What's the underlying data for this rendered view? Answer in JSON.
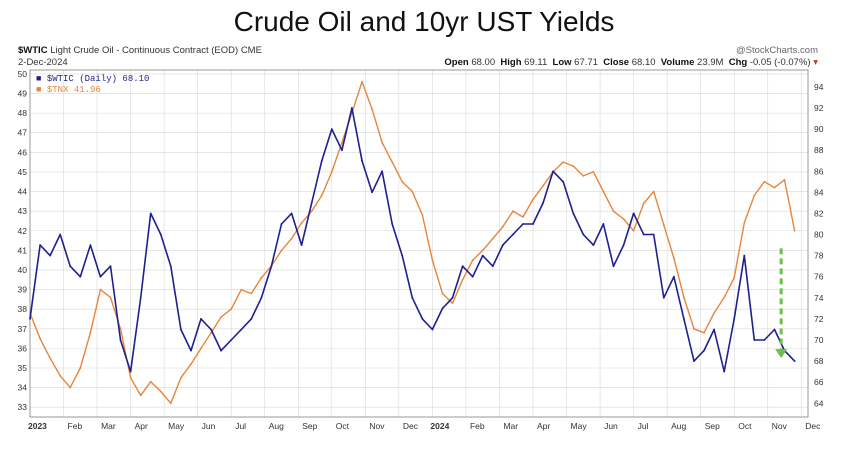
{
  "header": {
    "title": "Crude Oil and 10yr UST Yields",
    "symbol": "$WTIC",
    "description": "Light Crude Oil - Continuous Contract (EOD)",
    "exchange": "CME",
    "date": "2-Dec-2024",
    "watermark": "@StockCharts.com",
    "quote": {
      "open_label": "Open",
      "open": "68.00",
      "high_label": "High",
      "high": "69.11",
      "low_label": "Low",
      "low": "67.71",
      "close_label": "Close",
      "close": "68.10",
      "volume_label": "Volume",
      "volume": "23.9M",
      "chg_label": "Chg",
      "chg": "-0.05 (-0.07%)"
    }
  },
  "legend": {
    "wtic": "$WTIC (Daily) 68.10",
    "tnx": "$TNX 41.96"
  },
  "colors": {
    "wtic": "#1f1f8f",
    "tnx": "#e8853a",
    "arrow": "#6cc04a",
    "grid": "#d8d8d8"
  },
  "chart_data": {
    "type": "line",
    "left_axis_ticks": [
      33,
      34,
      35,
      36,
      37,
      38,
      39,
      40,
      41,
      42,
      43,
      44,
      45,
      46,
      47,
      48,
      49,
      50
    ],
    "right_axis_ticks": [
      64,
      66,
      68,
      70,
      72,
      74,
      76,
      78,
      80,
      82,
      84,
      86,
      88,
      90,
      92,
      94
    ],
    "left_ylim": [
      32.5,
      50.2
    ],
    "right_ylim": [
      62.7,
      95.6
    ],
    "x_ticks": [
      "2023",
      "Feb",
      "Mar",
      "Apr",
      "May",
      "Jun",
      "Jul",
      "Aug",
      "Sep",
      "Oct",
      "Nov",
      "Dec",
      "2024",
      "Feb",
      "Mar",
      "Apr",
      "May",
      "Jun",
      "Jul",
      "Aug",
      "Sep",
      "Oct",
      "Nov",
      "Dec"
    ],
    "x_range": [
      0,
      23.2
    ],
    "grid": true,
    "series": [
      {
        "name": "$TNX",
        "axis": "left",
        "x": [
          0,
          0.3,
          0.6,
          0.9,
          1.2,
          1.5,
          1.8,
          2.1,
          2.4,
          2.7,
          3.0,
          3.3,
          3.6,
          3.9,
          4.2,
          4.5,
          4.8,
          5.1,
          5.4,
          5.7,
          6.0,
          6.3,
          6.6,
          6.9,
          7.2,
          7.5,
          7.8,
          8.1,
          8.4,
          8.7,
          9.0,
          9.3,
          9.6,
          9.9,
          10.2,
          10.5,
          10.8,
          11.1,
          11.4,
          11.7,
          12.0,
          12.3,
          12.6,
          12.9,
          13.2,
          13.5,
          13.8,
          14.1,
          14.4,
          14.7,
          15.0,
          15.3,
          15.6,
          15.9,
          16.2,
          16.5,
          16.8,
          17.1,
          17.4,
          17.7,
          18.0,
          18.3,
          18.6,
          18.9,
          19.2,
          19.5,
          19.8,
          20.1,
          20.4,
          20.7,
          21.0,
          21.3,
          21.6,
          21.9,
          22.2,
          22.5,
          22.8
        ],
        "values": [
          37.8,
          36.5,
          35.5,
          34.6,
          34.0,
          35.0,
          36.8,
          39.0,
          38.6,
          37.0,
          34.5,
          33.6,
          34.3,
          33.8,
          33.2,
          34.5,
          35.2,
          36.0,
          36.8,
          37.6,
          38.0,
          39.0,
          38.8,
          39.6,
          40.2,
          41.0,
          41.6,
          42.4,
          43.0,
          43.8,
          45.0,
          46.5,
          48.0,
          49.6,
          48.2,
          46.5,
          45.5,
          44.5,
          44.0,
          42.8,
          40.5,
          38.8,
          38.3,
          39.5,
          40.5,
          41.0,
          41.6,
          42.2,
          43.0,
          42.7,
          43.6,
          44.3,
          45.0,
          45.5,
          45.3,
          44.8,
          45.0,
          44.0,
          43.0,
          42.6,
          42.0,
          43.4,
          44.0,
          42.3,
          40.6,
          38.6,
          37.0,
          36.8,
          37.8,
          38.6,
          39.6,
          42.4,
          43.8,
          44.5,
          44.2,
          44.6,
          42.0
        ]
      },
      {
        "name": "$WTIC",
        "axis": "right",
        "x": [
          0,
          0.3,
          0.6,
          0.9,
          1.2,
          1.5,
          1.8,
          2.1,
          2.4,
          2.7,
          3.0,
          3.3,
          3.6,
          3.9,
          4.2,
          4.5,
          4.8,
          5.1,
          5.4,
          5.7,
          6.0,
          6.3,
          6.6,
          6.9,
          7.2,
          7.5,
          7.8,
          8.1,
          8.4,
          8.7,
          9.0,
          9.3,
          9.6,
          9.9,
          10.2,
          10.5,
          10.8,
          11.1,
          11.4,
          11.7,
          12.0,
          12.3,
          12.6,
          12.9,
          13.2,
          13.5,
          13.8,
          14.1,
          14.4,
          14.7,
          15.0,
          15.3,
          15.6,
          15.9,
          16.2,
          16.5,
          16.8,
          17.1,
          17.4,
          17.7,
          18.0,
          18.3,
          18.6,
          18.9,
          19.2,
          19.5,
          19.8,
          20.1,
          20.4,
          20.7,
          21.0,
          21.3,
          21.6,
          21.9,
          22.2,
          22.5,
          22.8
        ],
        "values": [
          72,
          79,
          78,
          80,
          77,
          76,
          79,
          76,
          77,
          70,
          67,
          74,
          82,
          80,
          77,
          71,
          69,
          72,
          71,
          69,
          70,
          71,
          72,
          74,
          77,
          81,
          82,
          79,
          83,
          87,
          90,
          88,
          92,
          87,
          84,
          86,
          81,
          78,
          74,
          72,
          71,
          73,
          74,
          77,
          76,
          78,
          77,
          79,
          80,
          81,
          81,
          83,
          86,
          85,
          82,
          80,
          79,
          81,
          77,
          79,
          82,
          80,
          80,
          74,
          76,
          72,
          68,
          69,
          71,
          67,
          72,
          78,
          70,
          70,
          71,
          69,
          68
        ]
      }
    ],
    "annotation": {
      "type": "arrow",
      "color": "green",
      "style": "dashed",
      "x": 22.4,
      "from_value_left": 41.1,
      "to_value_left": 35.5
    }
  }
}
